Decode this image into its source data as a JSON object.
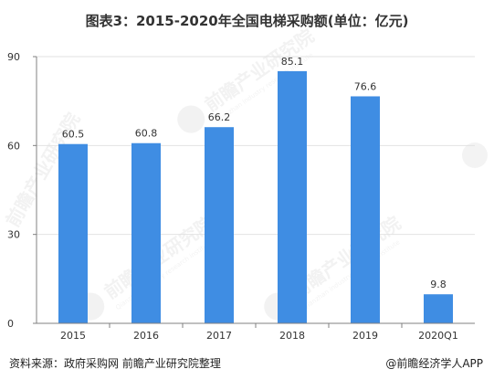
{
  "title": "图表3：2015-2020年全国电梯采购额(单位：亿元)",
  "footer": {
    "source": "资料来源：政府采购网 前瞻产业研究院整理",
    "brand": "@前瞻经济学人APP"
  },
  "watermark": {
    "name": "前瞻产业研究院",
    "subtitle": "Qianzhan industry research institute"
  },
  "colors": {
    "bar": "#3f8de3",
    "axis": "#808080",
    "grid": "#e2e2e2",
    "text": "#333333"
  },
  "chart_data": {
    "type": "bar",
    "title": "图表3：2015-2020年全国电梯采购额(单位：亿元)",
    "categories": [
      "2015",
      "2016",
      "2017",
      "2018",
      "2019",
      "2020Q1"
    ],
    "values": [
      60.5,
      60.8,
      66.2,
      85.1,
      76.6,
      9.8
    ],
    "data_labels": [
      "60.5",
      "60.8",
      "66.2",
      "85.1",
      "76.6",
      "9.8"
    ],
    "yticks": [
      "0",
      "30",
      "60",
      "90"
    ],
    "ytick_values": [
      0,
      30,
      60,
      90
    ],
    "ylim": [
      0,
      90
    ],
    "xlabel": "",
    "ylabel": "",
    "grid": true,
    "legend": "none"
  }
}
